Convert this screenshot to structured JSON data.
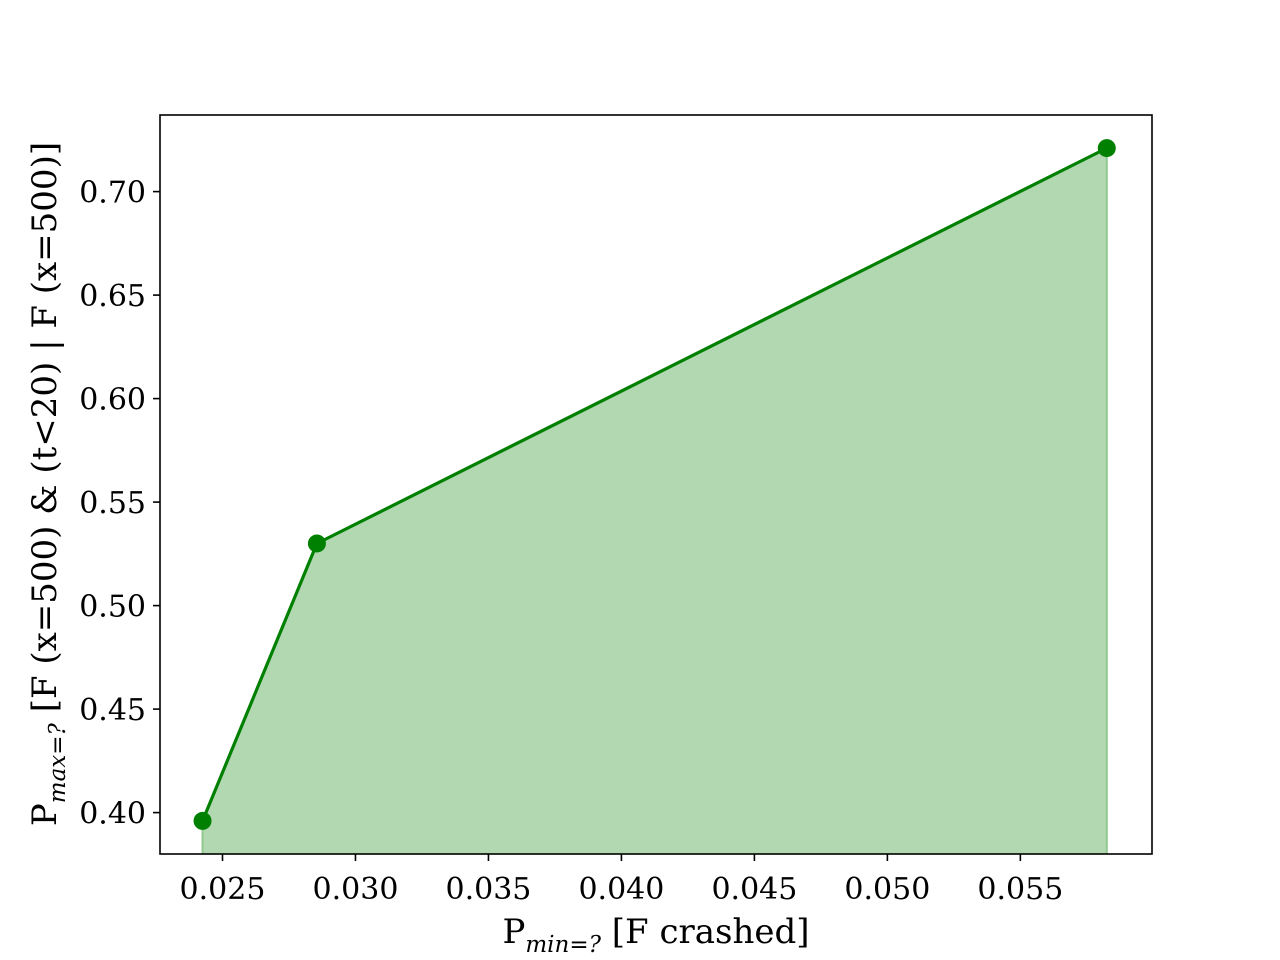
{
  "chart_data": {
    "type": "area",
    "x": [
      0.02425,
      0.02855,
      0.05825
    ],
    "y": [
      0.396,
      0.53,
      0.721
    ],
    "xlim": [
      0.02265,
      0.05995
    ],
    "ylim": [
      0.38,
      0.737
    ],
    "xticks": [
      0.025,
      0.03,
      0.035,
      0.04,
      0.045,
      0.05,
      0.055
    ],
    "xtick_labels": [
      "0.025",
      "0.030",
      "0.035",
      "0.040",
      "0.045",
      "0.050",
      "0.055"
    ],
    "yticks": [
      0.4,
      0.45,
      0.5,
      0.55,
      0.6,
      0.65,
      0.7
    ],
    "ytick_labels": [
      "0.40",
      "0.45",
      "0.50",
      "0.55",
      "0.60",
      "0.65",
      "0.70"
    ],
    "xlabel": {
      "main": "P",
      "sub": "min=?",
      "rest": " [F crashed]"
    },
    "ylabel": {
      "main": "P",
      "sub": "max=?",
      "rest": " [F (x=500) & (t<20) | F (x=500)]"
    },
    "line_color": "#008000",
    "fill_color": "#b2d8b2",
    "grid": false,
    "legend": false
  }
}
